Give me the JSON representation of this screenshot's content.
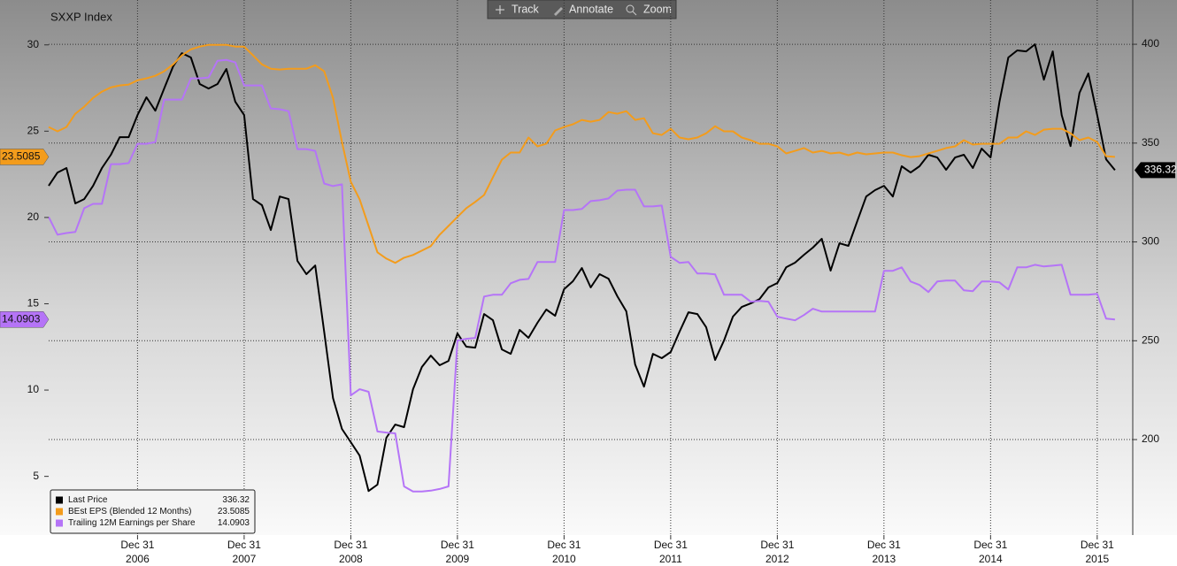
{
  "toolbar": [
    "Track",
    "Annotate",
    "Zoom"
  ],
  "chart_data": {
    "type": "line",
    "title": "SXXP Index",
    "legend": "bottom-left",
    "grid": true,
    "x": [
      "2006-02",
      "2006-03",
      "2006-04",
      "2006-05",
      "2006-06",
      "2006-07",
      "2006-08",
      "2006-09",
      "2006-10",
      "2006-11",
      "2006-12",
      "2007-01",
      "2007-02",
      "2007-03",
      "2007-04",
      "2007-05",
      "2007-06",
      "2007-07",
      "2007-08",
      "2007-09",
      "2007-10",
      "2007-11",
      "2007-12",
      "2008-01",
      "2008-02",
      "2008-03",
      "2008-04",
      "2008-05",
      "2008-06",
      "2008-07",
      "2008-08",
      "2008-09",
      "2008-10",
      "2008-11",
      "2008-12",
      "2009-01",
      "2009-02",
      "2009-03",
      "2009-04",
      "2009-05",
      "2009-06",
      "2009-07",
      "2009-08",
      "2009-09",
      "2009-10",
      "2009-11",
      "2009-12",
      "2010-01",
      "2010-02",
      "2010-03",
      "2010-04",
      "2010-05",
      "2010-06",
      "2010-07",
      "2010-08",
      "2010-09",
      "2010-10",
      "2010-11",
      "2010-12",
      "2011-01",
      "2011-02",
      "2011-03",
      "2011-04",
      "2011-05",
      "2011-06",
      "2011-07",
      "2011-08",
      "2011-09",
      "2011-10",
      "2011-11",
      "2011-12",
      "2012-01",
      "2012-02",
      "2012-03",
      "2012-04",
      "2012-05",
      "2012-06",
      "2012-07",
      "2012-08",
      "2012-09",
      "2012-10",
      "2012-11",
      "2012-12",
      "2013-01",
      "2013-02",
      "2013-03",
      "2013-04",
      "2013-05",
      "2013-06",
      "2013-07",
      "2013-08",
      "2013-09",
      "2013-10",
      "2013-11",
      "2013-12",
      "2014-01",
      "2014-02",
      "2014-03",
      "2014-04",
      "2014-05",
      "2014-06",
      "2014-07",
      "2014-08",
      "2014-09",
      "2014-10",
      "2014-11",
      "2014-12",
      "2015-01",
      "2015-02",
      "2015-03",
      "2015-04",
      "2015-05",
      "2015-06",
      "2015-07",
      "2015-08",
      "2015-09",
      "2015-10",
      "2015-11",
      "2015-12",
      "2016-01",
      "2016-02"
    ],
    "xlim": [
      "2006-02",
      "2016-04"
    ],
    "xticks": [
      {
        "value": "2006-12",
        "label": "Dec 31 2006"
      },
      {
        "value": "2007-12",
        "label": "Dec 31 2007"
      },
      {
        "value": "2008-12",
        "label": "Dec 31 2008"
      },
      {
        "value": "2009-12",
        "label": "Dec 31 2009"
      },
      {
        "value": "2010-12",
        "label": "Dec 31 2010"
      },
      {
        "value": "2011-12",
        "label": "Dec 31 2011"
      },
      {
        "value": "2012-12",
        "label": "Dec 31 2012"
      },
      {
        "value": "2013-12",
        "label": "Dec 31 2013"
      },
      {
        "value": "2014-12",
        "label": "Dec 31 2014"
      },
      {
        "value": "2015-12",
        "label": "Dec 31 2015"
      }
    ],
    "ylim": [
      1.6,
      32.6
    ],
    "yticks": [
      5,
      10,
      15,
      20,
      25,
      30
    ],
    "y2lim": [
      151.7,
      422.4
    ],
    "y2ticks": [
      200,
      250,
      300,
      350,
      400
    ],
    "series": [
      {
        "name": "Last Price",
        "color": "#000000",
        "axis": "y2",
        "values": [
          328.4,
          335.1,
          337.4,
          319.5,
          321.7,
          328.4,
          337.4,
          344.1,
          353,
          353,
          364.2,
          373.2,
          366.4,
          377.6,
          388.8,
          395.5,
          393.3,
          379.9,
          377.6,
          379.9,
          387.5,
          370.9,
          364.2,
          321.7,
          318.6,
          306,
          323,
          321.7,
          290.4,
          283.7,
          288.1,
          254.6,
          221,
          205.4,
          198.7,
          191.9,
          174,
          177.2,
          200.9,
          207.6,
          206.3,
          225.5,
          236.7,
          242.5,
          237.6,
          239.8,
          253.7,
          247,
          246.5,
          263.5,
          260.4,
          245.6,
          243.4,
          255.5,
          251.5,
          259.1,
          265.8,
          262.6,
          276.1,
          280.1,
          286.8,
          277,
          283.7,
          281.4,
          272.5,
          264.9,
          238,
          226.8,
          243.4,
          241.2,
          244.3,
          254.6,
          264.4,
          263.5,
          256.8,
          240.3,
          250.1,
          262.2,
          267.1,
          268.9,
          271.1,
          277,
          279.2,
          287.2,
          289.5,
          293.5,
          297.1,
          301.6,
          285.5,
          299.3,
          298,
          310.5,
          323,
          326.2,
          328.4,
          323,
          338.3,
          335.1,
          338.3,
          344.1,
          342.7,
          336.5,
          342.7,
          344.1,
          337.4,
          347.2,
          342.7,
          370.9,
          393.3,
          396.9,
          396.4,
          400,
          382.1,
          396.4,
          364.2,
          348.5,
          375.4,
          385.2,
          364.2,
          341.8,
          336.32
        ]
      },
      {
        "name": "BEst EPS (Blended 12 Months)",
        "color": "#f39c1c",
        "values": [
          25.24,
          24.99,
          25.24,
          26.01,
          26.42,
          26.93,
          27.29,
          27.54,
          27.65,
          27.7,
          27.95,
          28.06,
          28.21,
          28.47,
          28.87,
          29.39,
          29.74,
          29.9,
          30,
          30,
          30,
          29.9,
          29.9,
          29.39,
          28.87,
          28.62,
          28.57,
          28.62,
          28.62,
          28.62,
          28.82,
          28.47,
          26.93,
          24.37,
          22.07,
          21.05,
          19.51,
          17.98,
          17.62,
          17.37,
          17.67,
          17.83,
          18.08,
          18.34,
          19,
          19.51,
          20.03,
          20.54,
          20.9,
          21.3,
          22.33,
          23.35,
          23.76,
          23.76,
          24.63,
          24.12,
          24.27,
          25.04,
          25.24,
          25.4,
          25.65,
          25.55,
          25.65,
          26.11,
          26.01,
          26.16,
          25.65,
          25.75,
          24.88,
          24.78,
          25.14,
          24.63,
          24.53,
          24.63,
          24.88,
          25.29,
          24.99,
          24.99,
          24.63,
          24.48,
          24.27,
          24.27,
          24.12,
          23.71,
          23.86,
          24.02,
          23.76,
          23.86,
          23.71,
          23.76,
          23.61,
          23.76,
          23.66,
          23.71,
          23.76,
          23.76,
          23.61,
          23.5,
          23.55,
          23.71,
          23.86,
          24.02,
          24.12,
          24.48,
          24.22,
          24.27,
          24.27,
          24.27,
          24.63,
          24.63,
          24.99,
          24.78,
          25.09,
          25.14,
          25.14,
          24.88,
          24.48,
          24.63,
          24.37,
          23.55,
          23.5085
        ]
      },
      {
        "name": "Trailing 12M Earnings per Share",
        "color": "#b574f7",
        "values": [
          20.03,
          19,
          19.1,
          19.16,
          20.54,
          20.79,
          20.79,
          23.09,
          23.09,
          23.15,
          24.27,
          24.27,
          24.37,
          26.83,
          26.83,
          26.83,
          28.06,
          28.06,
          28.11,
          29.08,
          29.13,
          28.98,
          27.65,
          27.65,
          27.65,
          26.32,
          26.27,
          26.16,
          23.96,
          23.96,
          23.86,
          21.97,
          21.82,
          21.92,
          9.69,
          10.05,
          9.9,
          7.6,
          7.54,
          7.49,
          4.42,
          4.12,
          4.12,
          4.17,
          4.27,
          4.42,
          12.86,
          12.97,
          13.02,
          15.42,
          15.52,
          15.52,
          16.19,
          16.39,
          16.44,
          17.42,
          17.42,
          17.42,
          20.43,
          20.43,
          20.49,
          20.95,
          21,
          21.1,
          21.56,
          21.61,
          21.61,
          20.64,
          20.64,
          20.69,
          17.72,
          17.37,
          17.42,
          16.75,
          16.75,
          16.7,
          15.52,
          15.52,
          15.52,
          15.12,
          15.17,
          15.12,
          14.25,
          14.14,
          14.04,
          14.35,
          14.71,
          14.55,
          14.55,
          14.55,
          14.55,
          14.55,
          14.55,
          14.55,
          16.91,
          16.91,
          17.11,
          16.29,
          16.09,
          15.68,
          16.29,
          16.34,
          16.34,
          15.78,
          15.73,
          16.29,
          16.29,
          16.24,
          15.83,
          17.11,
          17.11,
          17.26,
          17.16,
          17.21,
          17.26,
          15.52,
          15.52,
          15.52,
          15.58,
          14.14,
          14.0903
        ]
      }
    ]
  }
}
